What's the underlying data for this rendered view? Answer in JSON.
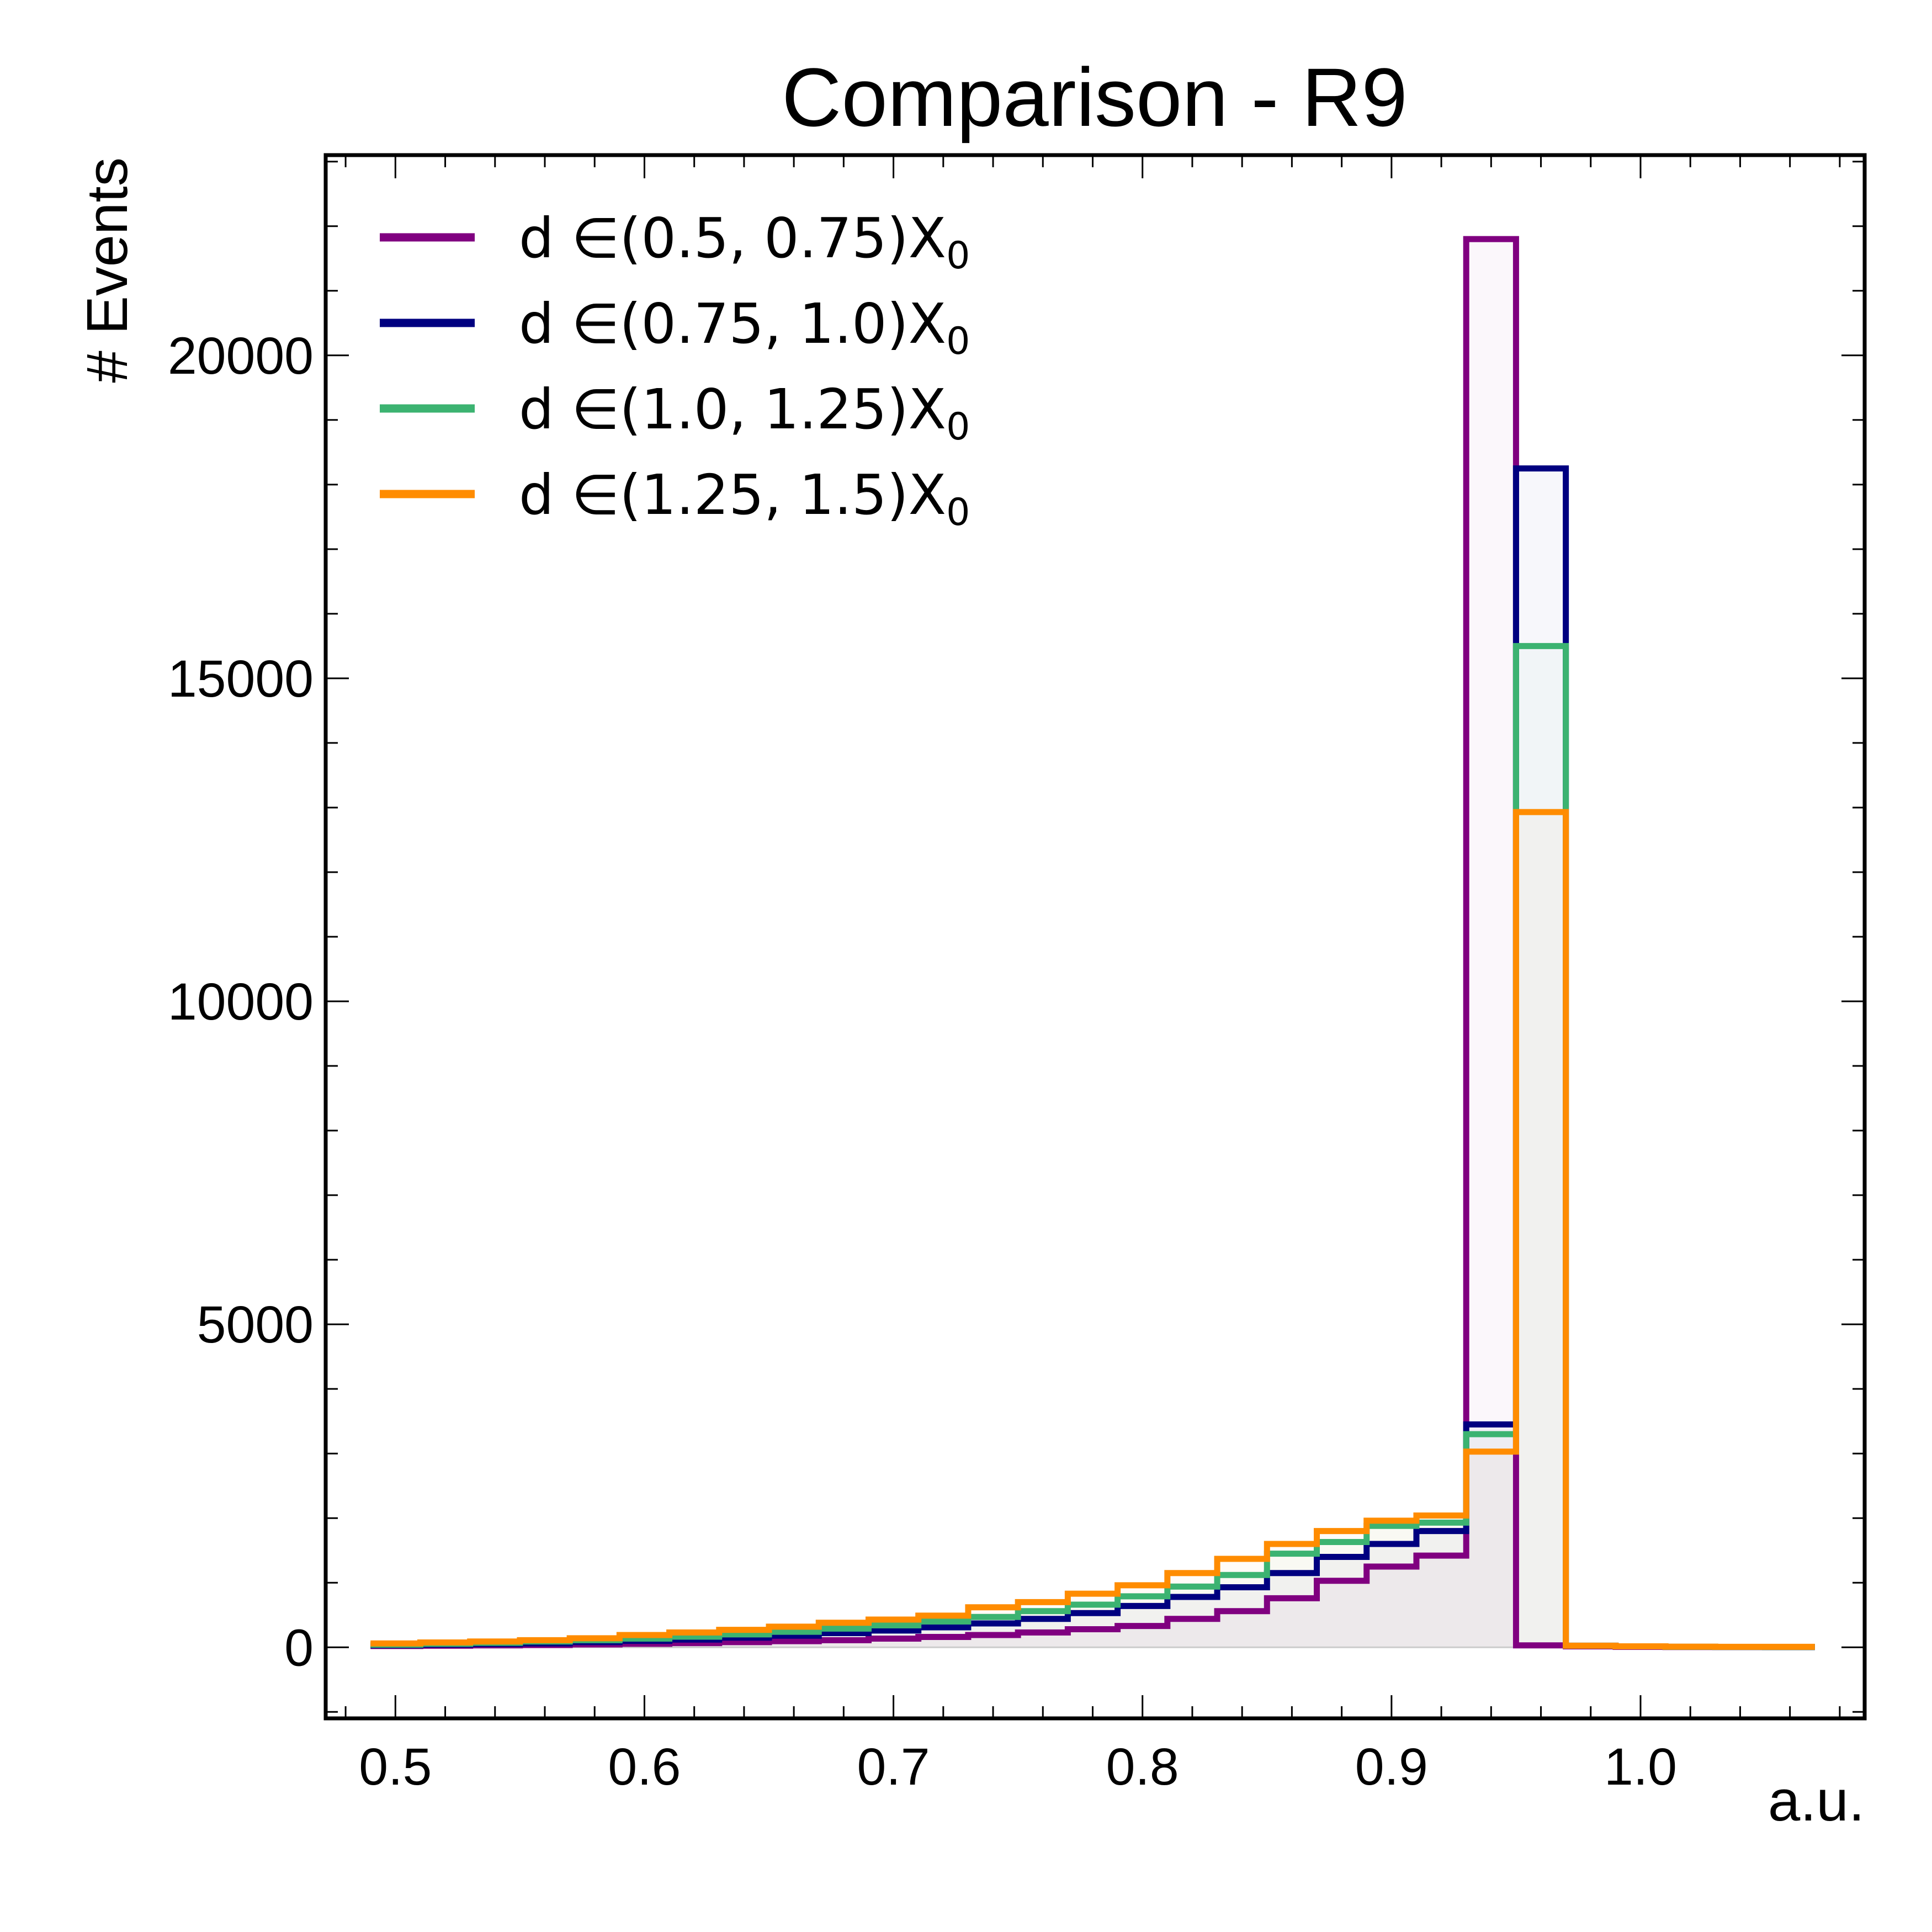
{
  "chart_data": {
    "type": "histogram",
    "title": "Comparison - R9",
    "xlabel": "a.u.",
    "ylabel": "# Events",
    "xlim": [
      0.472,
      1.09
    ],
    "ylim": [
      -1100,
      23100
    ],
    "grid": false,
    "legend_position": "top-left",
    "x_ticks": [
      "0.5",
      "0.6",
      "0.7",
      "0.8",
      "0.9",
      "1.0"
    ],
    "y_ticks": [
      "0",
      "5000",
      "10000",
      "15000",
      "20000"
    ],
    "bin_edges": [
      0.49,
      0.51,
      0.53,
      0.55,
      0.57,
      0.59,
      0.61,
      0.63,
      0.65,
      0.67,
      0.69,
      0.71,
      0.73,
      0.75,
      0.77,
      0.79,
      0.81,
      0.83,
      0.85,
      0.87,
      0.89,
      0.91,
      0.93,
      0.95,
      0.97,
      0.99,
      1.01,
      1.03,
      1.05,
      1.07
    ],
    "series": [
      {
        "name": "d ∈(0.5, 0.75)X",
        "subscript": "0",
        "color": "#800080",
        "values": [
          20,
          25,
          30,
          35,
          45,
          55,
          65,
          80,
          95,
          110,
          135,
          160,
          190,
          230,
          280,
          330,
          440,
          560,
          760,
          1030,
          1250,
          1420,
          21800,
          30,
          15,
          8,
          5,
          4,
          3
        ]
      },
      {
        "name": "d ∈(0.75, 1.0)X",
        "subscript": "0",
        "color": "#000080",
        "values": [
          30,
          40,
          50,
          60,
          80,
          100,
          120,
          150,
          180,
          220,
          260,
          310,
          370,
          440,
          530,
          640,
          780,
          930,
          1150,
          1400,
          1600,
          1800,
          3450,
          18250,
          25,
          15,
          8,
          6,
          5
        ]
      },
      {
        "name": "d ∈(1.0, 1.25)X",
        "subscript": "0",
        "color": "#3cb371",
        "values": [
          40,
          55,
          70,
          90,
          110,
          135,
          165,
          200,
          240,
          290,
          340,
          400,
          470,
          560,
          660,
          790,
          940,
          1120,
          1450,
          1630,
          1880,
          1930,
          3300,
          15500,
          25,
          15,
          8,
          6,
          5
        ]
      },
      {
        "name": "d ∈(1.25, 1.5)X",
        "subscript": "0",
        "color": "#ff8c00",
        "values": [
          60,
          75,
          90,
          110,
          140,
          190,
          230,
          270,
          320,
          380,
          430,
          490,
          620,
          700,
          830,
          960,
          1150,
          1370,
          1600,
          1800,
          1960,
          2040,
          3030,
          12930,
          25,
          15,
          10,
          8,
          8
        ]
      }
    ]
  }
}
